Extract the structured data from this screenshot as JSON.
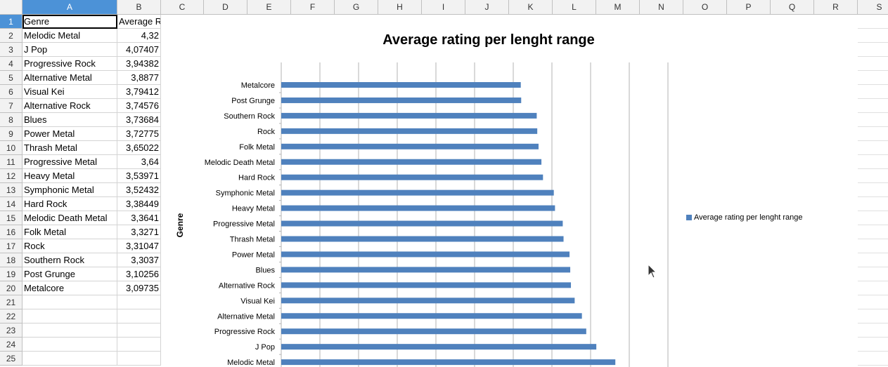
{
  "columns": [
    "A",
    "B",
    "C",
    "D",
    "E",
    "F",
    "G",
    "H",
    "I",
    "J",
    "K",
    "L",
    "M",
    "N",
    "O",
    "P",
    "Q",
    "R",
    "S"
  ],
  "rows": [
    "1",
    "2",
    "3",
    "4",
    "5",
    "6",
    "7",
    "8",
    "9",
    "10",
    "11",
    "12",
    "13",
    "14",
    "15",
    "16",
    "17",
    "18",
    "19",
    "20",
    "21",
    "22",
    "23",
    "24",
    "25"
  ],
  "sheet": {
    "header_a": "Genre",
    "header_b": "Average R",
    "genres": [
      "Melodic Metal",
      "J Pop",
      "Progressive Rock",
      "Alternative Metal",
      "Visual Kei",
      "Alternative Rock",
      "Blues",
      "Power Metal",
      "Thrash Metal",
      "Progressive Metal",
      "Heavy Metal",
      "Symphonic Metal",
      "Hard Rock",
      "Melodic Death Metal",
      "Folk Metal",
      "Rock",
      "Southern Rock",
      "Post Grunge",
      "Metalcore"
    ],
    "ratings": [
      "4,32",
      "4,07407",
      "3,94382",
      "3,8877",
      "3,79412",
      "3,74576",
      "3,73684",
      "3,72775",
      "3,65022",
      "3,64",
      "3,53971",
      "3,52432",
      "3,38449",
      "3,3641",
      "3,3271",
      "3,31047",
      "3,3037",
      "3,10256",
      "3,09735"
    ]
  },
  "chart_data": {
    "type": "bar",
    "orientation": "horizontal",
    "title": "Average rating per lenght range",
    "ylabel": "Genre",
    "legend_position": "right",
    "grid": true,
    "categories": [
      "Metalcore",
      "Post Grunge",
      "Southern Rock",
      "Rock",
      "Folk Metal",
      "Melodic Death Metal",
      "Hard Rock",
      "Symphonic Metal",
      "Heavy Metal",
      "Progressive Metal",
      "Thrash Metal",
      "Power Metal",
      "Blues",
      "Alternative Rock",
      "Visual Kei",
      "Alternative Metal",
      "Progressive Rock",
      "J Pop",
      "Melodic Metal"
    ],
    "series": [
      {
        "name": "Average rating per lenght range",
        "color": "#4f81bd",
        "values": [
          3.09735,
          3.10256,
          3.3037,
          3.31047,
          3.3271,
          3.3641,
          3.38449,
          3.52432,
          3.53971,
          3.64,
          3.65022,
          3.72775,
          3.73684,
          3.74576,
          3.79412,
          3.8877,
          3.94382,
          4.07407,
          4.32
        ]
      }
    ],
    "xlim": [
      0,
      5
    ]
  },
  "colors": {
    "selected_header": "#4c92d7",
    "bar": "#4f81bd"
  }
}
